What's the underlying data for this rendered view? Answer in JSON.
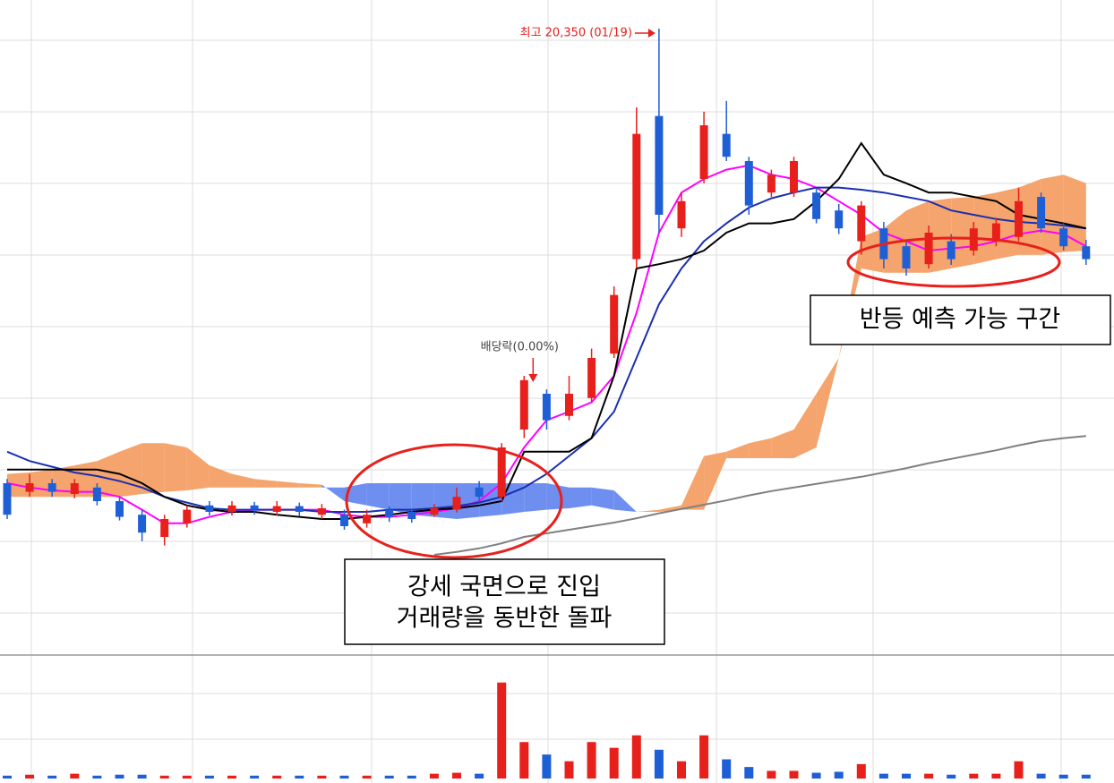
{
  "chart_data": {
    "type": "candlestick",
    "ylim": [
      11625,
      20750
    ],
    "up_color": "#e8201c",
    "down_color": "#1f5fd6",
    "open": [
      14000,
      13880,
      14000,
      13850,
      13940,
      13750,
      13560,
      13250,
      13440,
      13690,
      13600,
      13690,
      13600,
      13680,
      13560,
      13560,
      13440,
      13630,
      13600,
      13560,
      13630,
      13940,
      13810,
      14750,
      15250,
      14940,
      15190,
      15810,
      17130,
      19130,
      17560,
      18250,
      18880,
      18500,
      18060,
      18060,
      18060,
      17810,
      17380,
      17560,
      17310,
      17060,
      17380,
      17250,
      17380,
      17440,
      18000,
      17560,
      17310
    ],
    "close": [
      13560,
      14000,
      13880,
      14000,
      13750,
      13530,
      13310,
      13500,
      13630,
      13600,
      13690,
      13630,
      13680,
      13600,
      13650,
      13400,
      13560,
      13530,
      13500,
      13650,
      13810,
      13810,
      14500,
      15440,
      14880,
      15250,
      15750,
      16630,
      18880,
      17750,
      17940,
      19000,
      18560,
      17880,
      18310,
      18500,
      17690,
      17560,
      17880,
      17130,
      17000,
      17500,
      17130,
      17560,
      17630,
      17940,
      17560,
      17310,
      17130
    ],
    "high": [
      14060,
      14130,
      14060,
      14060,
      14000,
      13810,
      13630,
      13560,
      13690,
      13750,
      13750,
      13740,
      13750,
      13730,
      13710,
      13630,
      13630,
      13680,
      13650,
      13710,
      13940,
      14030,
      14560,
      15500,
      15310,
      15500,
      15880,
      16750,
      19250,
      20350,
      18060,
      19190,
      19340,
      18560,
      18380,
      18560,
      18130,
      17900,
      17940,
      17650,
      17400,
      17600,
      17480,
      17650,
      17710,
      18130,
      18060,
      17630,
      17400
    ],
    "low": [
      13500,
      13810,
      13810,
      13790,
      13690,
      13480,
      13190,
      13130,
      13380,
      13550,
      13550,
      13560,
      13550,
      13540,
      13500,
      13350,
      13380,
      13460,
      13450,
      13530,
      13590,
      13750,
      13750,
      14630,
      14750,
      14880,
      15130,
      15750,
      17000,
      17500,
      17440,
      18190,
      18500,
      17750,
      18000,
      18000,
      17630,
      17480,
      17190,
      17000,
      16900,
      17000,
      17050,
      17180,
      17310,
      17380,
      17500,
      17250,
      17050
    ],
    "lines": [
      {
        "color": "#ff00ff",
        "values": [
          14000,
          13940,
          13900,
          13880,
          13880,
          13810,
          13630,
          13440,
          13440,
          13530,
          13600,
          13630,
          13630,
          13630,
          13630,
          13560,
          13530,
          13530,
          13560,
          13600,
          13650,
          13750,
          14000,
          14500,
          14880,
          15000,
          15130,
          15500,
          16380,
          17500,
          18060,
          18250,
          18380,
          18440,
          18310,
          18250,
          18130,
          17940,
          17750,
          17500,
          17380,
          17250,
          17280,
          17310,
          17380,
          17480,
          17530,
          17480,
          17310
        ]
      },
      {
        "color": "#1a2fb0",
        "values": [
          14440,
          14310,
          14230,
          14150,
          14100,
          14030,
          13940,
          13810,
          13730,
          13650,
          13630,
          13630,
          13630,
          13630,
          13600,
          13600,
          13600,
          13630,
          13630,
          13650,
          13680,
          13730,
          13810,
          13940,
          14130,
          14380,
          14630,
          15000,
          15750,
          16500,
          17000,
          17380,
          17630,
          17850,
          17980,
          18060,
          18130,
          18130,
          18100,
          18060,
          18000,
          17940,
          17810,
          17750,
          17690,
          17650,
          17630,
          17600,
          17560
        ]
      },
      {
        "color": "#000000",
        "values": [
          14190,
          14190,
          14190,
          14190,
          14190,
          14130,
          14000,
          13810,
          13690,
          13630,
          13600,
          13600,
          13560,
          13530,
          13500,
          13500,
          13530,
          13560,
          13600,
          13630,
          13650,
          13690,
          13750,
          14440,
          14440,
          14440,
          14630,
          15500,
          17000,
          17060,
          17130,
          17250,
          17500,
          17630,
          17630,
          17690,
          17940,
          18250,
          18750,
          18310,
          18190,
          18060,
          18060,
          18000,
          17940,
          17750,
          17690,
          17630,
          17560
        ]
      },
      {
        "color": "#808080",
        "values": [
          null,
          null,
          null,
          null,
          null,
          null,
          null,
          null,
          null,
          null,
          null,
          null,
          null,
          null,
          null,
          null,
          null,
          null,
          null,
          13000,
          13040,
          13090,
          13160,
          13250,
          13300,
          13350,
          13400,
          13450,
          13510,
          13580,
          13640,
          13700,
          13760,
          13830,
          13890,
          13940,
          13990,
          14040,
          14090,
          14150,
          14210,
          14280,
          14340,
          14400,
          14460,
          14530,
          14590,
          14630,
          14660
        ]
      }
    ],
    "cloud": {
      "up_color": "#f4a46c",
      "down_color": "#6f8ff0",
      "span_a": [
        14130,
        14150,
        14190,
        14250,
        14310,
        14440,
        14560,
        14560,
        14500,
        14250,
        14130,
        14060,
        14030,
        14000,
        13980,
        13750,
        13690,
        13630,
        13560,
        13530,
        13500,
        13530,
        13560,
        13600,
        13630,
        13650,
        13690,
        13630,
        13600,
        13630,
        13690,
        14380,
        14440,
        14560,
        14630,
        14750,
        15250,
        15750,
        17440,
        17560,
        17810,
        17940,
        17980,
        18000,
        18060,
        18130,
        18250,
        18310,
        18190
      ],
      "span_b": [
        13810,
        13810,
        13810,
        13810,
        13810,
        13810,
        13850,
        13880,
        13900,
        13940,
        13940,
        13940,
        13940,
        13940,
        13940,
        13940,
        14000,
        14000,
        14000,
        14000,
        14000,
        14000,
        14000,
        14000,
        14000,
        13940,
        13940,
        13900,
        13600,
        13600,
        13630,
        13630,
        14350,
        14350,
        14350,
        14350,
        14500,
        15750,
        17000,
        16940,
        16940,
        16940,
        17000,
        17060,
        17130,
        17190,
        17190,
        17230,
        17250
      ]
    },
    "volume": {
      "ylim": [
        0,
        110
      ],
      "values": [
        3,
        4,
        3,
        5,
        3,
        4,
        4,
        3,
        3,
        3,
        3,
        3,
        3,
        3,
        3,
        3,
        3,
        3,
        3,
        5,
        6,
        5,
        100,
        38,
        25,
        18,
        38,
        32,
        45,
        30,
        18,
        45,
        20,
        12,
        8,
        8,
        6,
        7,
        15,
        5,
        5,
        5,
        4,
        5,
        5,
        18,
        5,
        4,
        4
      ]
    },
    "high_label": "최고 20,350 (01/19)",
    "ex_dividend_label": "배당락(0.00%)",
    "callouts": [
      {
        "lines": [
          "강세 국면으로 진입",
          "거래량을 동반한 돌파"
        ]
      },
      {
        "lines": [
          "반등 예측 가능 구간"
        ]
      }
    ]
  }
}
